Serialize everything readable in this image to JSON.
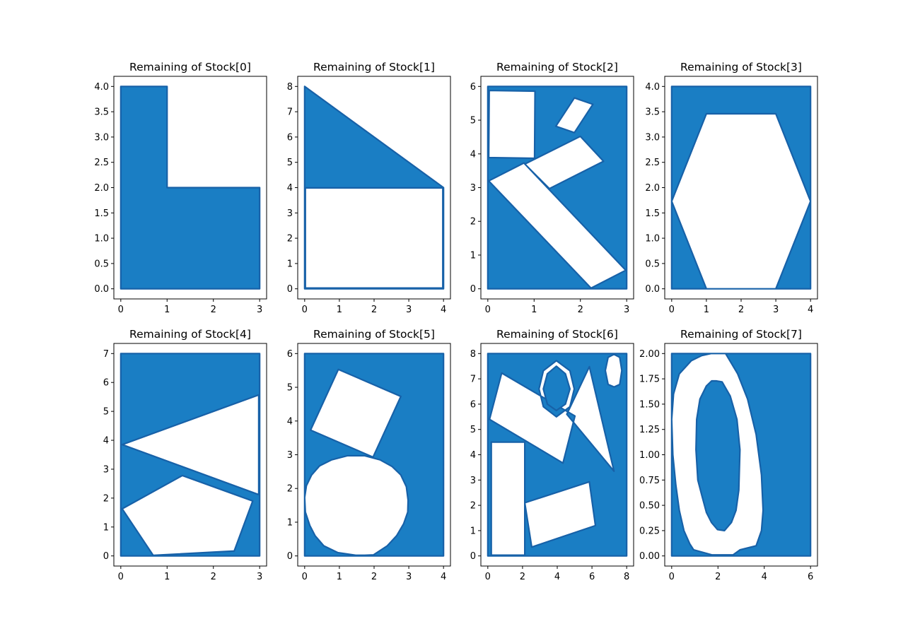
{
  "colors": {
    "fill": "#1a7ec4",
    "edge": "#1761a8",
    "background": "#ffffff",
    "axes": "#000000"
  },
  "chart_data": [
    {
      "type": "area",
      "title": "Remaining of Stock[0]",
      "xlabel": "",
      "ylabel": "",
      "xlim": [
        -0.15,
        3.15
      ],
      "ylim": [
        -0.2,
        4.2
      ],
      "xticks": [
        0,
        1,
        2,
        3
      ],
      "xtick_labels": [
        "0",
        "1",
        "2",
        "3"
      ],
      "yticks": [
        0,
        0.5,
        1,
        1.5,
        2,
        2.5,
        3,
        3.5,
        4
      ],
      "ytick_labels": [
        "0.0",
        "0.5",
        "1.0",
        "1.5",
        "2.0",
        "2.5",
        "3.0",
        "3.5",
        "4.0"
      ],
      "grid": false,
      "outer": [
        [
          0,
          0
        ],
        [
          3,
          0
        ],
        [
          3,
          2
        ],
        [
          1,
          2
        ],
        [
          1,
          4
        ],
        [
          0,
          4
        ]
      ],
      "holes": []
    },
    {
      "type": "area",
      "title": "Remaining of Stock[1]",
      "xlabel": "",
      "ylabel": "",
      "xlim": [
        -0.2,
        4.2
      ],
      "ylim": [
        -0.4,
        8.4
      ],
      "xticks": [
        0,
        1,
        2,
        3,
        4
      ],
      "xtick_labels": [
        "0",
        "1",
        "2",
        "3",
        "4"
      ],
      "yticks": [
        0,
        1,
        2,
        3,
        4,
        5,
        6,
        7,
        8
      ],
      "ytick_labels": [
        "0",
        "1",
        "2",
        "3",
        "4",
        "5",
        "6",
        "7",
        "8"
      ],
      "grid": false,
      "outer": [
        [
          0,
          0
        ],
        [
          4,
          0
        ],
        [
          4,
          4
        ],
        [
          0,
          8
        ]
      ],
      "holes": [
        [
          [
            0.02,
            0.03
          ],
          [
            3.98,
            0.03
          ],
          [
            3.98,
            3.99
          ],
          [
            0.02,
            3.99
          ]
        ]
      ]
    },
    {
      "type": "area",
      "title": "Remaining of Stock[2]",
      "xlabel": "",
      "ylabel": "",
      "xlim": [
        -0.15,
        3.15
      ],
      "ylim": [
        -0.3,
        6.3
      ],
      "xticks": [
        0,
        1,
        2,
        3
      ],
      "xtick_labels": [
        "0",
        "1",
        "2",
        "3"
      ],
      "yticks": [
        0,
        1,
        2,
        3,
        4,
        5,
        6
      ],
      "ytick_labels": [
        "0",
        "1",
        "2",
        "3",
        "4",
        "5",
        "6"
      ],
      "grid": false,
      "outer": [
        [
          0,
          0
        ],
        [
          3,
          0
        ],
        [
          3,
          6
        ],
        [
          0,
          6
        ]
      ],
      "holes": [
        [
          [
            0.03,
            5.88
          ],
          [
            1.02,
            5.86
          ],
          [
            1.01,
            3.87
          ],
          [
            0.02,
            3.89
          ]
        ],
        [
          [
            1.47,
            4.82
          ],
          [
            1.87,
            4.63
          ],
          [
            2.27,
            5.47
          ],
          [
            1.87,
            5.66
          ]
        ],
        [
          [
            0.8,
            3.7
          ],
          [
            1.33,
            2.97
          ],
          [
            2.5,
            3.78
          ],
          [
            2.0,
            4.52
          ]
        ],
        [
          [
            0.02,
            3.2
          ],
          [
            0.78,
            3.73
          ],
          [
            2.98,
            0.55
          ],
          [
            2.23,
            0.02
          ]
        ]
      ]
    },
    {
      "type": "area",
      "title": "Remaining of Stock[3]",
      "xlabel": "",
      "ylabel": "",
      "xlim": [
        -0.2,
        4.2
      ],
      "ylim": [
        -0.2,
        4.2
      ],
      "xticks": [
        0,
        1,
        2,
        3,
        4
      ],
      "xtick_labels": [
        "0",
        "1",
        "2",
        "3",
        "4"
      ],
      "yticks": [
        0,
        0.5,
        1,
        1.5,
        2,
        2.5,
        3,
        3.5,
        4
      ],
      "ytick_labels": [
        "0.0",
        "0.5",
        "1.0",
        "1.5",
        "2.0",
        "2.5",
        "3.0",
        "3.5",
        "4.0"
      ],
      "grid": false,
      "outer": [
        [
          0,
          0
        ],
        [
          4,
          0
        ],
        [
          4,
          4
        ],
        [
          0,
          4
        ]
      ],
      "holes": [
        [
          [
            0,
            1.73
          ],
          [
            1,
            3.46
          ],
          [
            3,
            3.46
          ],
          [
            4,
            1.73
          ],
          [
            3,
            0
          ],
          [
            1,
            0
          ]
        ]
      ]
    },
    {
      "type": "area",
      "title": "Remaining of Stock[4]",
      "xlabel": "",
      "ylabel": "",
      "xlim": [
        -0.15,
        3.15
      ],
      "ylim": [
        -0.35,
        7.35
      ],
      "xticks": [
        0,
        1,
        2,
        3
      ],
      "xtick_labels": [
        "0",
        "1",
        "2",
        "3"
      ],
      "yticks": [
        0,
        1,
        2,
        3,
        4,
        5,
        6,
        7
      ],
      "ytick_labels": [
        "0",
        "1",
        "2",
        "3",
        "4",
        "5",
        "6",
        "7"
      ],
      "grid": false,
      "outer": [
        [
          0,
          0
        ],
        [
          3,
          0
        ],
        [
          3,
          7
        ],
        [
          0,
          7
        ]
      ],
      "holes": [
        [
          [
            0.03,
            3.85
          ],
          [
            2.98,
            5.57
          ],
          [
            2.98,
            2.12
          ]
        ],
        [
          [
            0.03,
            1.63
          ],
          [
            0.7,
            0.02
          ],
          [
            2.45,
            0.17
          ],
          [
            2.85,
            1.9
          ],
          [
            1.33,
            2.78
          ]
        ]
      ]
    },
    {
      "type": "area",
      "title": "Remaining of Stock[5]",
      "xlabel": "",
      "ylabel": "",
      "xlim": [
        -0.2,
        4.2
      ],
      "ylim": [
        -0.3,
        6.3
      ],
      "xticks": [
        0,
        1,
        2,
        3,
        4
      ],
      "xtick_labels": [
        "0",
        "1",
        "2",
        "3",
        "4"
      ],
      "yticks": [
        0,
        1,
        2,
        3,
        4,
        5,
        6
      ],
      "ytick_labels": [
        "0",
        "1",
        "2",
        "3",
        "4",
        "5",
        "6"
      ],
      "grid": false,
      "outer": [
        [
          0,
          0
        ],
        [
          4,
          0
        ],
        [
          4,
          6
        ],
        [
          0,
          6
        ]
      ],
      "holes": [
        [
          [
            0.17,
            3.73
          ],
          [
            0.97,
            5.53
          ],
          [
            2.77,
            4.73
          ],
          [
            1.97,
            2.93
          ]
        ],
        [
          [
            1.47,
            0.02
          ],
          [
            1.73,
            0.02
          ],
          [
            1.98,
            0.03
          ],
          [
            2.38,
            0.3
          ],
          [
            2.65,
            0.6
          ],
          [
            2.85,
            0.95
          ],
          [
            2.97,
            1.3
          ],
          [
            2.98,
            1.65
          ],
          [
            2.93,
            2.05
          ],
          [
            2.77,
            2.4
          ],
          [
            2.52,
            2.65
          ],
          [
            2.17,
            2.85
          ],
          [
            1.73,
            2.97
          ],
          [
            1.23,
            2.97
          ],
          [
            0.78,
            2.85
          ],
          [
            0.43,
            2.67
          ],
          [
            0.2,
            2.4
          ],
          [
            0.05,
            2.08
          ],
          [
            0.0,
            1.73
          ],
          [
            0.02,
            1.3
          ],
          [
            0.15,
            0.9
          ],
          [
            0.3,
            0.6
          ],
          [
            0.55,
            0.3
          ],
          [
            0.95,
            0.1
          ]
        ]
      ]
    },
    {
      "type": "area",
      "title": "Remaining of Stock[6]",
      "xlabel": "",
      "ylabel": "",
      "xlim": [
        -0.4,
        8.4
      ],
      "ylim": [
        -0.4,
        8.4
      ],
      "xticks": [
        0,
        2,
        4,
        6,
        8
      ],
      "xtick_labels": [
        "0",
        "2",
        "4",
        "6",
        "8"
      ],
      "yticks": [
        0,
        1,
        2,
        3,
        4,
        5,
        6,
        7,
        8
      ],
      "ytick_labels": [
        "0",
        "1",
        "2",
        "3",
        "4",
        "5",
        "6",
        "7",
        "8"
      ],
      "grid": false,
      "outer": [
        [
          0,
          0
        ],
        [
          8,
          0
        ],
        [
          8,
          8
        ],
        [
          0,
          8
        ]
      ],
      "holes": [
        [
          [
            0.2,
            0.03
          ],
          [
            2.13,
            0.03
          ],
          [
            2.13,
            4.5
          ],
          [
            0.2,
            4.5
          ]
        ],
        [
          [
            2.13,
            2.1
          ],
          [
            5.85,
            2.93
          ],
          [
            6.2,
            1.2
          ],
          [
            2.53,
            0.35
          ]
        ],
        [
          [
            0.1,
            5.4
          ],
          [
            0.8,
            7.23
          ],
          [
            5.02,
            5.53
          ],
          [
            4.33,
            3.67
          ]
        ],
        [
          [
            4.55,
            5.6
          ],
          [
            5.85,
            7.48
          ],
          [
            7.27,
            3.35
          ]
        ],
        [
          [
            3.95,
            7.72
          ],
          [
            4.73,
            7.32
          ],
          [
            4.98,
            6.6
          ],
          [
            4.73,
            5.9
          ],
          [
            3.95,
            5.5
          ],
          [
            3.2,
            5.9
          ],
          [
            2.95,
            6.6
          ],
          [
            3.2,
            7.32
          ]
        ],
        [
          [
            7.27,
            7.97
          ],
          [
            7.6,
            7.85
          ],
          [
            7.72,
            7.33
          ],
          [
            7.6,
            6.78
          ],
          [
            7.27,
            6.68
          ],
          [
            6.93,
            6.78
          ],
          [
            6.77,
            7.33
          ],
          [
            6.93,
            7.85
          ]
        ]
      ],
      "islands": [
        [
          [
            3.95,
            7.5
          ],
          [
            4.47,
            7.2
          ],
          [
            4.73,
            6.6
          ],
          [
            4.47,
            6.0
          ],
          [
            3.95,
            5.75
          ],
          [
            3.43,
            6.0
          ],
          [
            3.2,
            6.6
          ],
          [
            3.43,
            7.2
          ]
        ]
      ]
    },
    {
      "type": "area",
      "title": "Remaining of Stock[7]",
      "xlabel": "",
      "ylabel": "",
      "xlim": [
        -0.3,
        6.3
      ],
      "ylim": [
        -0.1,
        2.1
      ],
      "xticks": [
        0,
        2,
        4,
        6
      ],
      "xtick_labels": [
        "0",
        "2",
        "4",
        "6"
      ],
      "yticks": [
        0,
        0.25,
        0.5,
        0.75,
        1,
        1.25,
        1.5,
        1.75,
        2
      ],
      "ytick_labels": [
        "0.00",
        "0.25",
        "0.50",
        "0.75",
        "1.00",
        "1.25",
        "1.50",
        "1.75",
        "2.00"
      ],
      "grid": false,
      "outer": [
        [
          0,
          0
        ],
        [
          6,
          0
        ],
        [
          6,
          2
        ],
        [
          0,
          2
        ]
      ],
      "holes": [
        [
          [
            1.7,
            2.0
          ],
          [
            2.33,
            2.0
          ],
          [
            2.85,
            1.8
          ],
          [
            3.28,
            1.55
          ],
          [
            3.65,
            1.2
          ],
          [
            3.88,
            0.8
          ],
          [
            3.95,
            0.45
          ],
          [
            3.88,
            0.25
          ],
          [
            3.65,
            0.1
          ],
          [
            2.95,
            0.06
          ],
          [
            2.65,
            0.01
          ],
          [
            1.75,
            0.01
          ],
          [
            0.95,
            0.06
          ],
          [
            0.78,
            0.12
          ],
          [
            0.53,
            0.25
          ],
          [
            0.33,
            0.45
          ],
          [
            0.18,
            0.7
          ],
          [
            0.05,
            1.0
          ],
          [
            0.0,
            1.35
          ],
          [
            0.08,
            1.6
          ],
          [
            0.33,
            1.8
          ],
          [
            0.85,
            1.93
          ],
          [
            1.3,
            1.98
          ]
        ]
      ],
      "islands": [
        [
          [
            1.92,
            1.73
          ],
          [
            2.18,
            1.72
          ],
          [
            2.53,
            1.58
          ],
          [
            2.82,
            1.35
          ],
          [
            2.95,
            1.05
          ],
          [
            2.9,
            0.65
          ],
          [
            2.78,
            0.45
          ],
          [
            2.58,
            0.33
          ],
          [
            2.28,
            0.25
          ],
          [
            1.98,
            0.26
          ],
          [
            1.72,
            0.33
          ],
          [
            1.5,
            0.43
          ],
          [
            1.3,
            0.6
          ],
          [
            1.13,
            0.75
          ],
          [
            1.05,
            1.05
          ],
          [
            1.08,
            1.35
          ],
          [
            1.22,
            1.55
          ],
          [
            1.5,
            1.68
          ],
          [
            1.73,
            1.73
          ]
        ]
      ]
    }
  ]
}
